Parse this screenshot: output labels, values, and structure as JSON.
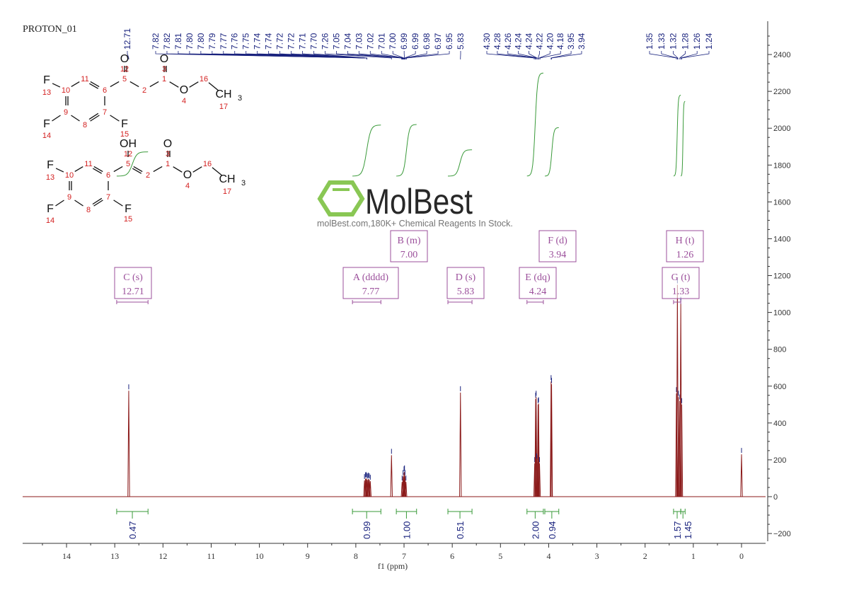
{
  "chart_data": {
    "type": "line",
    "title": "PROTON_01",
    "xlabel": "f1 (ppm)",
    "ylabel": "",
    "xlim": [
      14.9,
      -0.5
    ],
    "ylim": [
      -250,
      2500
    ],
    "x_reversed": true,
    "grid": false,
    "x_ticks": [
      14,
      13,
      12,
      11,
      10,
      9,
      8,
      7,
      6,
      5,
      4,
      3,
      2,
      1,
      0
    ],
    "y_ticks": [
      2400,
      2200,
      2000,
      1800,
      1600,
      1400,
      1200,
      1000,
      800,
      600,
      400,
      200,
      0,
      -200
    ],
    "colors": {
      "spectrum": "#8b1a1a",
      "peak_labels": "#1a237e",
      "integrals": "#3a9a3a",
      "multiplets": "#9b4f9b",
      "atom_numbers": "#d32020"
    },
    "peaks": [
      {
        "ppm": 12.71,
        "intensity": 575
      },
      {
        "ppm": 7.82,
        "intensity": 88
      },
      {
        "ppm": 7.8,
        "intensity": 96
      },
      {
        "ppm": 7.79,
        "intensity": 100
      },
      {
        "ppm": 7.77,
        "intensity": 94
      },
      {
        "ppm": 7.75,
        "intensity": 90
      },
      {
        "ppm": 7.74,
        "intensity": 96
      },
      {
        "ppm": 7.72,
        "intensity": 92
      },
      {
        "ppm": 7.7,
        "intensity": 84
      },
      {
        "ppm": 7.26,
        "intensity": 225
      },
      {
        "ppm": 7.04,
        "intensity": 80
      },
      {
        "ppm": 7.02,
        "intensity": 110
      },
      {
        "ppm": 7.0,
        "intensity": 130
      },
      {
        "ppm": 6.99,
        "intensity": 135
      },
      {
        "ppm": 6.98,
        "intensity": 110
      },
      {
        "ppm": 6.96,
        "intensity": 80
      },
      {
        "ppm": 5.83,
        "intensity": 565
      },
      {
        "ppm": 4.29,
        "intensity": 180
      },
      {
        "ppm": 4.27,
        "intensity": 530
      },
      {
        "ppm": 4.26,
        "intensity": 540
      },
      {
        "ppm": 4.25,
        "intensity": 200
      },
      {
        "ppm": 4.23,
        "intensity": 190
      },
      {
        "ppm": 4.22,
        "intensity": 500
      },
      {
        "ppm": 4.21,
        "intensity": 505
      },
      {
        "ppm": 4.19,
        "intensity": 180
      },
      {
        "ppm": 3.95,
        "intensity": 625
      },
      {
        "ppm": 3.94,
        "intensity": 610
      },
      {
        "ppm": 1.35,
        "intensity": 560
      },
      {
        "ppm": 1.33,
        "intensity": 1150
      },
      {
        "ppm": 1.31,
        "intensity": 540
      },
      {
        "ppm": 1.28,
        "intensity": 520
      },
      {
        "ppm": 1.26,
        "intensity": 1050
      },
      {
        "ppm": 1.24,
        "intensity": 500
      },
      {
        "ppm": 0.0,
        "intensity": 230
      }
    ],
    "peak_label_groups": [
      [
        "12.71"
      ],
      [
        "7.82",
        "7.82",
        "7.81",
        "7.80",
        "7.80",
        "7.79",
        "7.77",
        "7.76",
        "7.75",
        "7.74",
        "7.74",
        "7.72",
        "7.72",
        "7.71",
        "7.70",
        "7.26",
        "7.05",
        "7.04",
        "7.03",
        "7.02",
        "7.01",
        "7.00",
        "6.99",
        "6.99",
        "6.98",
        "6.97",
        "6.95",
        "5.83"
      ],
      [
        "4.30",
        "4.28",
        "4.26",
        "4.24",
        "4.24",
        "4.22",
        "4.20",
        "4.18",
        "3.95",
        "3.94"
      ],
      [
        "1.35",
        "1.33",
        "1.32",
        "1.28",
        "1.26",
        "1.24"
      ]
    ],
    "multiplets": [
      {
        "label": "C (s)",
        "shift": "12.71",
        "range": [
          12.96,
          12.31
        ]
      },
      {
        "label": "A (dddd)",
        "shift": "7.77",
        "range": [
          8.07,
          7.48
        ]
      },
      {
        "label": "B (m)",
        "shift": "7.00",
        "range": [
          7.16,
          6.74
        ]
      },
      {
        "label": "D (s)",
        "shift": "5.83",
        "range": [
          6.09,
          5.59
        ]
      },
      {
        "label": "E (dq)",
        "shift": "4.24",
        "range": [
          4.45,
          4.11
        ]
      },
      {
        "label": "F (d)",
        "shift": "3.94",
        "range": [
          4.08,
          3.79
        ]
      },
      {
        "label": "G (t)",
        "shift": "1.33",
        "range": [
          1.41,
          1.26
        ]
      },
      {
        "label": "H (t)",
        "shift": "1.26",
        "range": [
          1.26,
          1.17
        ]
      }
    ],
    "integrals": [
      {
        "range": [
          12.96,
          12.31
        ],
        "value": "0.47"
      },
      {
        "range": [
          8.07,
          7.48
        ],
        "value": "0.99"
      },
      {
        "range": [
          7.16,
          6.74
        ],
        "value": "1.00"
      },
      {
        "range": [
          6.09,
          5.59
        ],
        "value": "0.51"
      },
      {
        "range": [
          4.45,
          4.11
        ],
        "value": "2.00"
      },
      {
        "range": [
          4.08,
          3.79
        ],
        "value": "0.94"
      },
      {
        "range": [
          1.41,
          1.26
        ],
        "value": "1.57"
      },
      {
        "range": [
          1.26,
          1.17
        ],
        "value": "1.45"
      }
    ]
  },
  "structures": [
    {
      "atoms": {
        "F13": "F",
        "n13": "13",
        "n10": "10",
        "n11": "11",
        "n6": "6",
        "n7": "7",
        "n8": "8",
        "n9": "9",
        "F14": "F",
        "n14": "14",
        "F15": "F",
        "n15": "15",
        "n5": "5",
        "O12": "O",
        "n12": "12",
        "n2": "2",
        "n1": "1",
        "O3": "O",
        "n3": "3",
        "O4": "O",
        "n4": "4",
        "n16": "16",
        "CH3": "CH",
        "sub3": "3",
        "n17": "17"
      }
    },
    {
      "atoms": {
        "F13": "F",
        "n13": "13",
        "n10": "10",
        "n11": "11",
        "n6": "6",
        "n7": "7",
        "n8": "8",
        "n9": "9",
        "F14": "F",
        "n14": "14",
        "F15": "F",
        "n15": "15",
        "n5": "5",
        "O12": "OH",
        "n12": "12",
        "n2": "2",
        "n1": "1",
        "O3": "O",
        "n3": "3",
        "O4": "O",
        "n4": "4",
        "n16": "16",
        "CH3": "CH",
        "sub3": "3",
        "n17": "17"
      }
    }
  ],
  "watermark": {
    "brand": "MolBest",
    "tagline": "molBest.com,180K+ Chemical Reagents In Stock."
  }
}
